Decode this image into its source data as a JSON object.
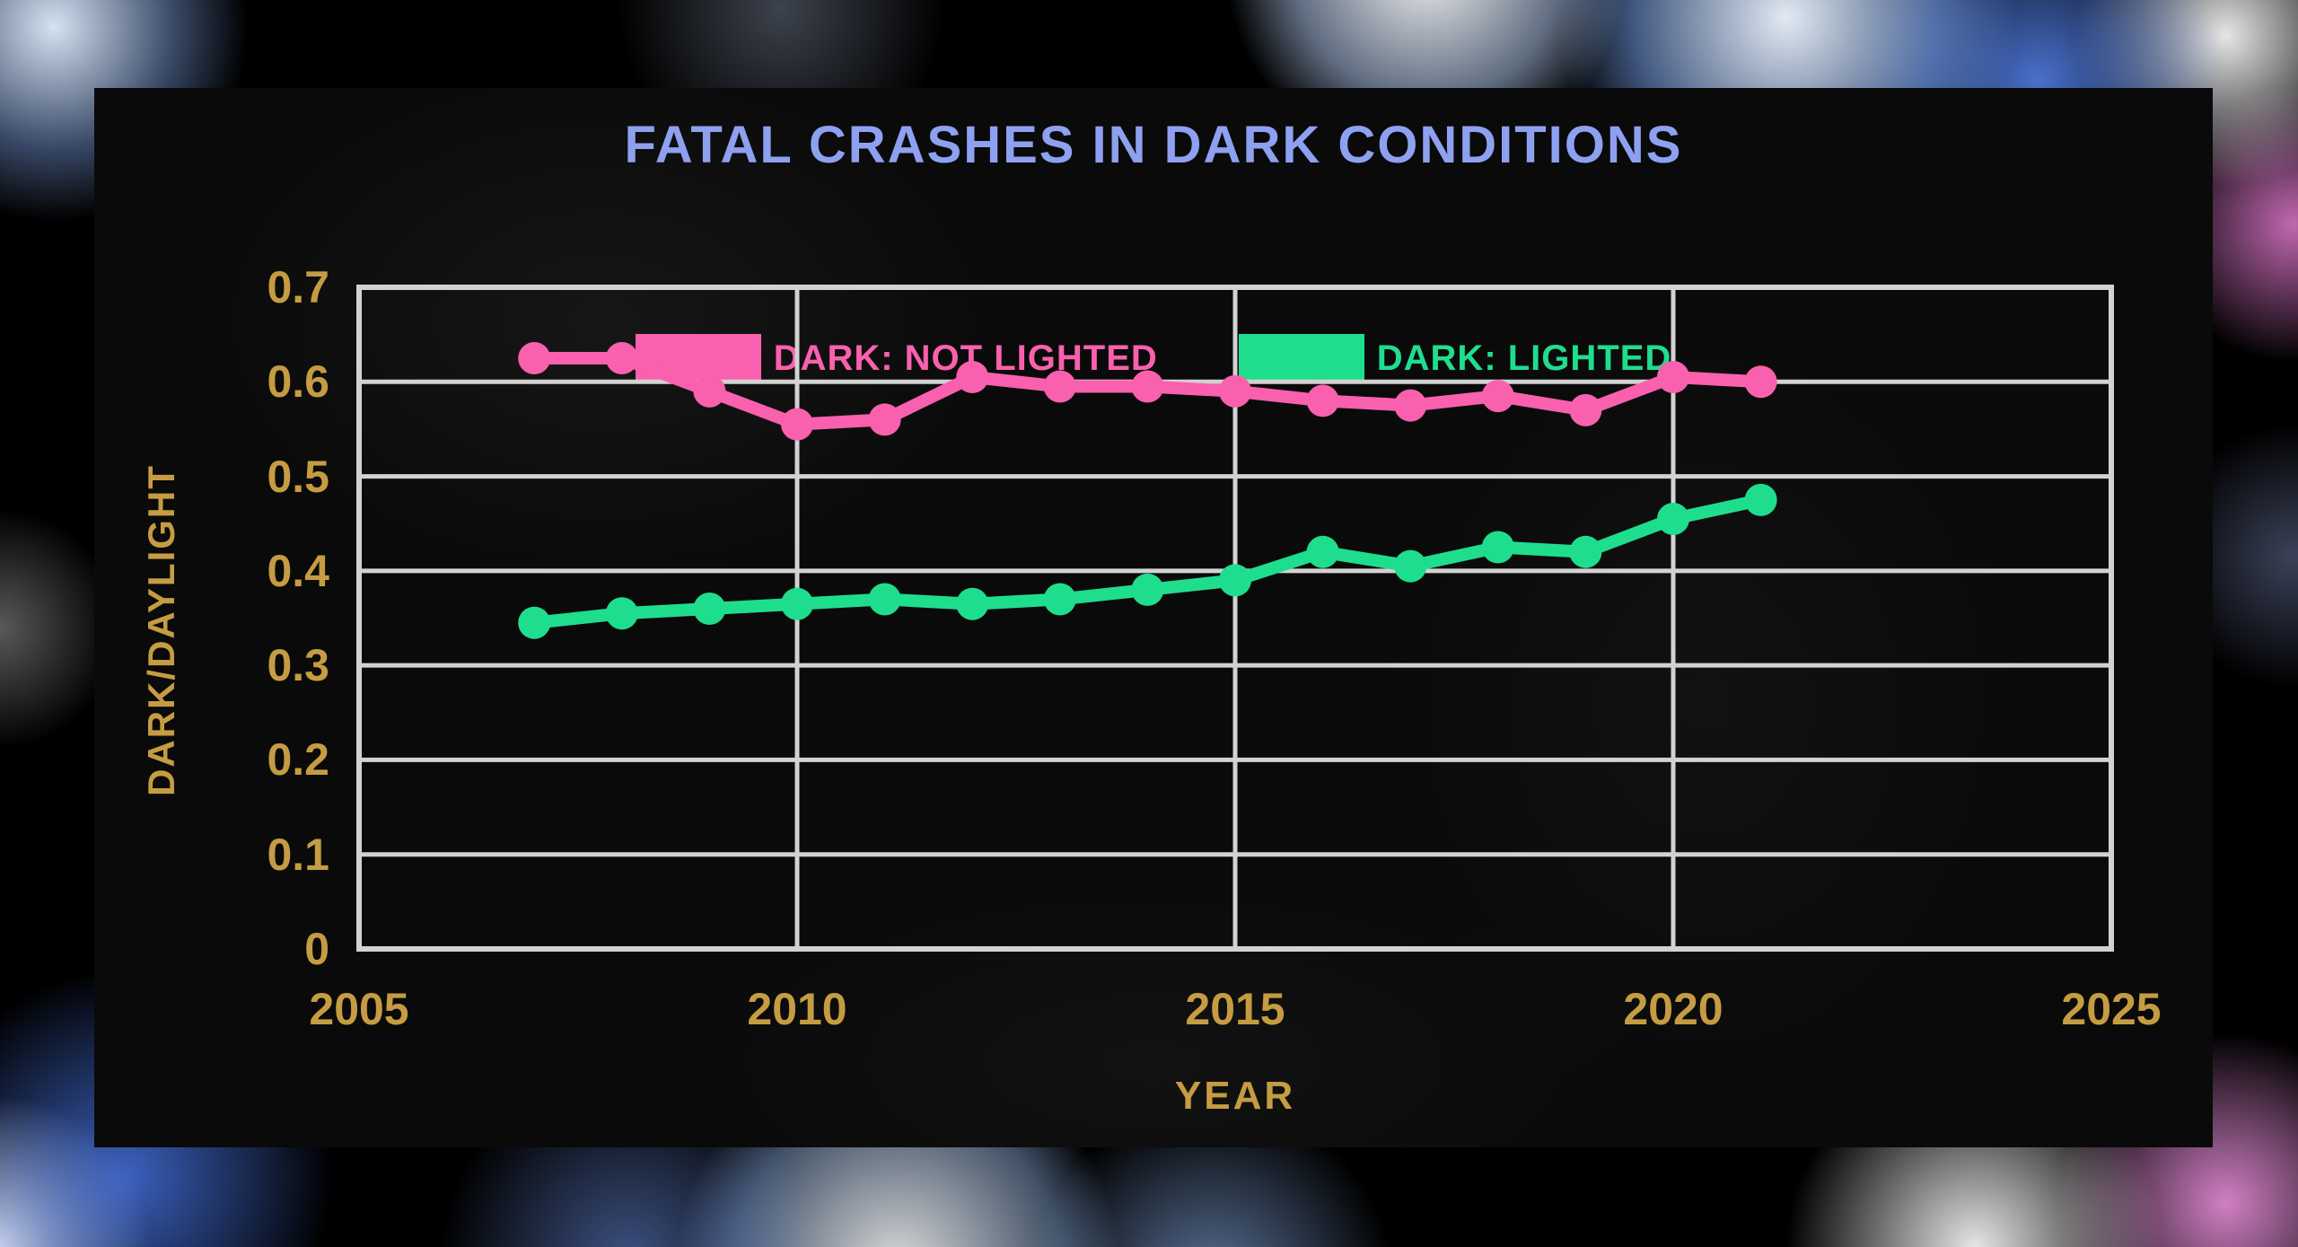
{
  "colors": {
    "title": "#8ea0f0",
    "axis_text": "#c59c42",
    "grid": "#d2d2d2",
    "panel_bg": "#0a0a0a",
    "background": "#000000"
  },
  "chart_data": {
    "type": "line",
    "title": "FATAL CRASHES IN DARK CONDITIONS",
    "xlabel": "YEAR",
    "ylabel": "DARK/DAYLIGHT",
    "xlim": [
      2005,
      2025
    ],
    "ylim": [
      0,
      0.7
    ],
    "x_ticks": [
      2005,
      2010,
      2015,
      2020,
      2025
    ],
    "y_ticks": [
      0,
      0.1,
      0.2,
      0.3,
      0.4,
      0.5,
      0.6,
      0.7
    ],
    "x_gridlines": [
      2010,
      2015,
      2020
    ],
    "grid": true,
    "legend_position": "top-center",
    "x": [
      2007,
      2008,
      2009,
      2010,
      2011,
      2012,
      2013,
      2014,
      2015,
      2016,
      2017,
      2018,
      2019,
      2020,
      2021
    ],
    "series": [
      {
        "name": "DARK: NOT LIGHTED",
        "color": "#f960ae",
        "values": [
          0.625,
          0.625,
          0.59,
          0.555,
          0.56,
          0.605,
          0.595,
          0.595,
          0.59,
          0.58,
          0.575,
          0.585,
          0.57,
          0.605,
          0.6
        ]
      },
      {
        "name": "DARK: LIGHTED",
        "color": "#1ede8d",
        "values": [
          0.345,
          0.355,
          0.36,
          0.365,
          0.37,
          0.365,
          0.37,
          0.38,
          0.39,
          0.42,
          0.405,
          0.425,
          0.42,
          0.455,
          0.475
        ]
      }
    ]
  }
}
